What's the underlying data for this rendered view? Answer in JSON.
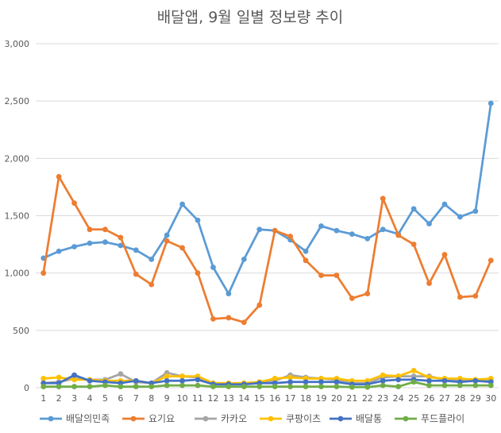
{
  "chart_data": {
    "type": "line",
    "title": "배달앱, 9월 일별 정보량 추이",
    "xlabel": "",
    "ylabel": "",
    "categories": [
      "1",
      "2",
      "3",
      "4",
      "5",
      "6",
      "7",
      "8",
      "9",
      "10",
      "11",
      "12",
      "13",
      "14",
      "15",
      "16",
      "17",
      "18",
      "19",
      "20",
      "21",
      "22",
      "23",
      "24",
      "25",
      "26",
      "27",
      "28",
      "29",
      "30"
    ],
    "ylim": [
      0,
      3000
    ],
    "yticks": [
      0,
      500,
      1000,
      1500,
      2000,
      2500,
      3000
    ],
    "ytick_labels": [
      "0",
      "500",
      "1,000",
      "1,500",
      "2,000",
      "2,500",
      "3,000"
    ],
    "grid": true,
    "legend_position": "bottom",
    "series": [
      {
        "name": "배달의민족",
        "color": "#5b9bd5",
        "values": [
          1130,
          1190,
          1230,
          1260,
          1270,
          1240,
          1200,
          1120,
          1330,
          1600,
          1460,
          1050,
          820,
          1120,
          1380,
          1370,
          1290,
          1190,
          1410,
          1370,
          1340,
          1300,
          1380,
          1340,
          1560,
          1430,
          1600,
          1490,
          1540,
          2480
        ]
      },
      {
        "name": "요기요",
        "color": "#ed7d31",
        "values": [
          1000,
          1840,
          1610,
          1380,
          1380,
          1310,
          990,
          900,
          1280,
          1220,
          1000,
          600,
          610,
          570,
          720,
          1370,
          1320,
          1110,
          980,
          980,
          780,
          820,
          1650,
          1330,
          1250,
          910,
          1160,
          790,
          800,
          1110
        ]
      },
      {
        "name": "카카오",
        "color": "#a5a5a5",
        "values": [
          40,
          50,
          80,
          70,
          70,
          120,
          50,
          40,
          130,
          100,
          90,
          40,
          30,
          40,
          50,
          60,
          110,
          90,
          80,
          70,
          40,
          40,
          90,
          100,
          100,
          100,
          70,
          60,
          60,
          60
        ]
      },
      {
        "name": "쿠팡이츠",
        "color": "#ffc000",
        "values": [
          80,
          90,
          70,
          70,
          60,
          60,
          60,
          40,
          100,
          100,
          100,
          40,
          40,
          40,
          50,
          80,
          90,
          80,
          80,
          80,
          60,
          60,
          110,
          100,
          150,
          90,
          80,
          80,
          70,
          80
        ]
      },
      {
        "name": "배달통",
        "color": "#4472c4",
        "values": [
          40,
          40,
          110,
          60,
          50,
          40,
          60,
          40,
          60,
          60,
          70,
          30,
          30,
          30,
          40,
          40,
          50,
          50,
          50,
          50,
          30,
          30,
          60,
          70,
          70,
          60,
          60,
          50,
          60,
          50
        ]
      },
      {
        "name": "푸드플라이",
        "color": "#70ad47",
        "values": [
          10,
          10,
          10,
          10,
          20,
          10,
          10,
          10,
          20,
          20,
          20,
          10,
          10,
          10,
          10,
          10,
          10,
          10,
          10,
          10,
          5,
          5,
          20,
          10,
          50,
          20,
          20,
          20,
          20,
          20
        ]
      }
    ]
  }
}
